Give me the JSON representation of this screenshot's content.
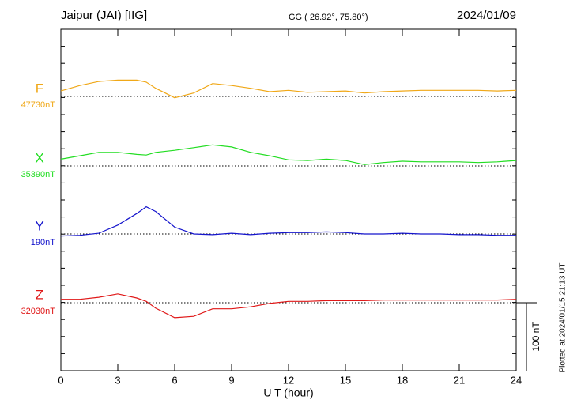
{
  "chart_data": {
    "type": "magnetogram",
    "title": "Jaipur (JAI)  [IIG]",
    "subtitle": "GG ( 26.92°,  75.80°)",
    "date": "2024/01/09",
    "x_label": "U T (hour)",
    "footnote": "Plotted at 2024/01/15 21:13 UT",
    "xlim": [
      0,
      24
    ],
    "xticks": [
      0,
      3,
      6,
      9,
      12,
      15,
      18,
      21,
      24
    ],
    "scale_bar": {
      "value": 100,
      "label": "100 nT"
    },
    "x": [
      0,
      1,
      2,
      3,
      4,
      4.5,
      5,
      6,
      7,
      8,
      9,
      10,
      11,
      12,
      13,
      14,
      15,
      16,
      17,
      18,
      19,
      20,
      21,
      22,
      23,
      24
    ],
    "series": [
      {
        "name": "F",
        "color": "#f0a818",
        "baseline": 47730,
        "baseline_label": "47730nT",
        "values": [
          47738,
          47746,
          47752,
          47754,
          47754,
          47751,
          47742,
          47728,
          47735,
          47749,
          47746,
          47742,
          47737,
          47739,
          47736,
          47737,
          47738,
          47735,
          47737,
          47738,
          47739,
          47739,
          47739,
          47739,
          47738,
          47739
        ]
      },
      {
        "name": "X",
        "color": "#22dd22",
        "baseline": 35390,
        "baseline_label": "35390nT",
        "values": [
          35400,
          35405,
          35410,
          35410,
          35407,
          35406,
          35410,
          35413,
          35417,
          35421,
          35418,
          35410,
          35405,
          35399,
          35398,
          35400,
          35398,
          35392,
          35395,
          35397,
          35396,
          35396,
          35396,
          35395,
          35396,
          35398
        ]
      },
      {
        "name": "Y",
        "color": "#1515cc",
        "baseline": 190,
        "baseline_label": "190nT",
        "values": [
          187,
          188,
          191,
          203,
          220,
          230,
          223,
          200,
          190,
          189,
          191,
          189,
          191,
          192,
          192,
          193,
          192,
          190,
          190,
          191,
          190,
          190,
          189,
          189,
          188,
          188
        ]
      },
      {
        "name": "Z",
        "color": "#e01818",
        "baseline": 32030,
        "baseline_label": "32030nT",
        "values": [
          32035,
          32035,
          32038,
          32043,
          32037,
          32032,
          32022,
          32008,
          32010,
          32021,
          32021,
          32024,
          32029,
          32032,
          32032,
          32033,
          32033,
          32033,
          32034,
          32034,
          32034,
          32034,
          32034,
          32034,
          32034,
          32035
        ]
      }
    ]
  }
}
